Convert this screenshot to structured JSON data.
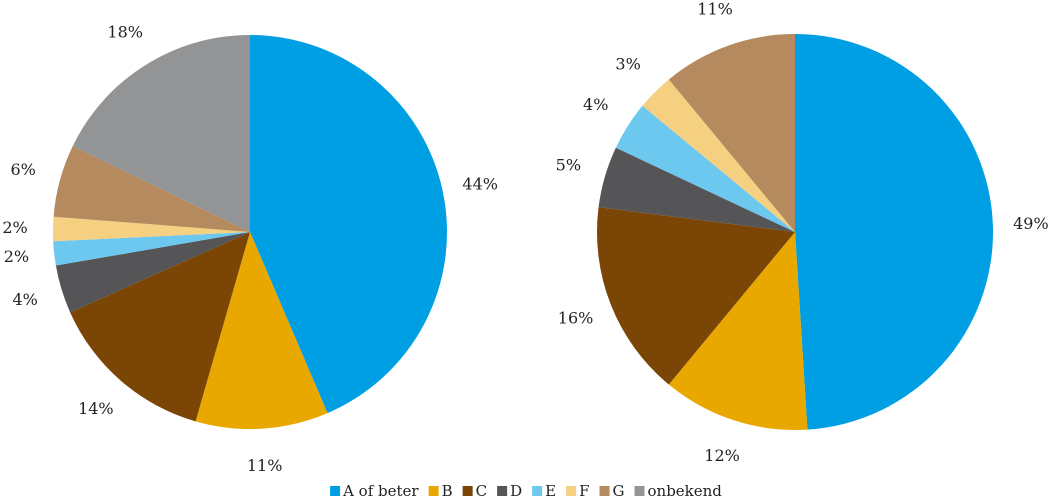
{
  "chart_data": [
    {
      "type": "pie",
      "categories": [
        "A of beter",
        "B",
        "C",
        "D",
        "E",
        "F",
        "G",
        "onbekend"
      ],
      "values": [
        44,
        11,
        14,
        4,
        2,
        2,
        6,
        18
      ],
      "value_labels": [
        "44%",
        "11%",
        "14%",
        "4%",
        "2%",
        "2%",
        "6%",
        "18%"
      ],
      "colors": [
        "#009fe3",
        "#e8a800",
        "#7a4505",
        "#555558",
        "#6dc8ef",
        "#f5d080",
        "#b58a5e",
        "#939496"
      ]
    },
    {
      "type": "pie",
      "categories": [
        "A of beter",
        "B",
        "C",
        "D",
        "E",
        "F",
        "G"
      ],
      "values": [
        49,
        12,
        16,
        5,
        4,
        3,
        11
      ],
      "value_labels": [
        "49%",
        "12%",
        "16%",
        "5%",
        "4%",
        "3%",
        "11%"
      ],
      "colors": [
        "#009fe3",
        "#e8a800",
        "#7a4505",
        "#555558",
        "#6dc8ef",
        "#f5d080",
        "#b58a5e"
      ]
    }
  ]
}
